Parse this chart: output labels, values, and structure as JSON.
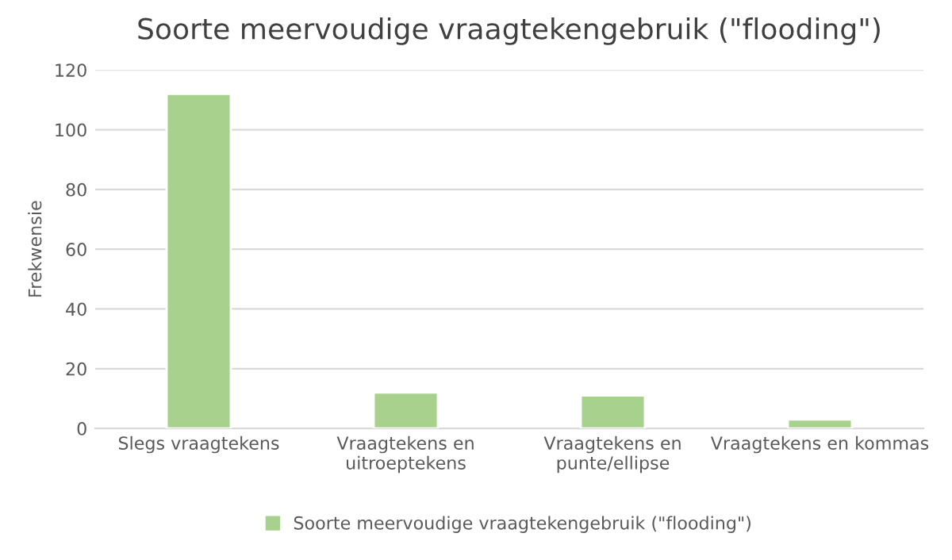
{
  "chart_data": {
    "type": "bar",
    "title": "Soorte meervoudige vraagtekengebruik (\"flooding\")",
    "ylabel": "Frekwensie",
    "categories": [
      "Slegs vraagtekens",
      "Vraagtekens en\nuitroeptekens",
      "Vraagtekens en\npunte/ellipse",
      "Vraagtekens en kommas"
    ],
    "series": [
      {
        "name": "Soorte meervoudige vraagtekengebruik (\"flooding\")",
        "color": "#a9d18e",
        "values": [
          112,
          12,
          11,
          3
        ]
      }
    ],
    "ylim": [
      0,
      120
    ],
    "yticks": [
      0,
      20,
      40,
      60,
      80,
      100,
      120
    ],
    "grid": "y",
    "legend": "bottom"
  }
}
